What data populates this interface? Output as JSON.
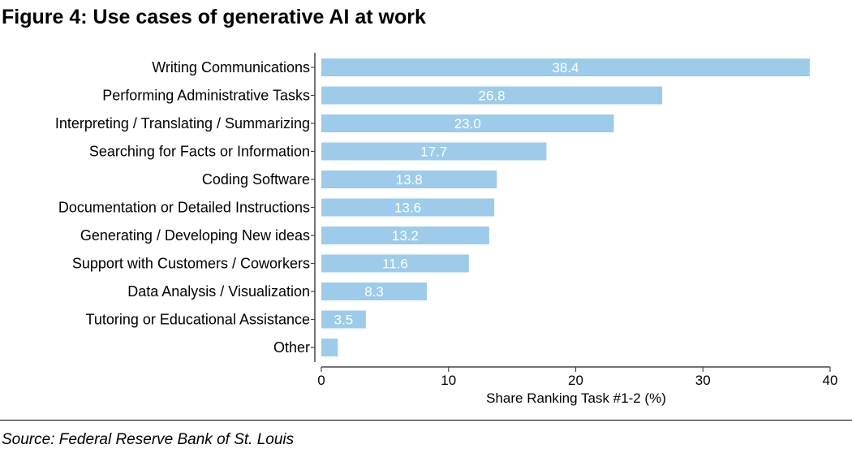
{
  "title": "Figure 4: Use cases of generative AI at work",
  "source": "Source: Federal Reserve Bank of St. Louis",
  "colors": {
    "bar": "#9ecbea",
    "bar_label": "#ffffff",
    "axis": "#444444",
    "text": "#000000"
  },
  "chart_data": {
    "type": "bar",
    "orientation": "horizontal",
    "title": "Figure 4: Use cases of generative AI at work",
    "xlabel": "Share Ranking Task #1-2 (%)",
    "ylabel": "",
    "xlim": [
      0,
      40
    ],
    "xticks": [
      0,
      10,
      20,
      30,
      40
    ],
    "grid": false,
    "categories": [
      "Writing Communications",
      "Performing Administrative Tasks",
      "Interpreting / Translating / Summarizing",
      "Searching for Facts or Information",
      "Coding Software",
      "Documentation or Detailed Instructions",
      "Generating / Developing New ideas",
      "Support with Customers / Coworkers",
      "Data Analysis / Visualization",
      "Tutoring or Educational Assistance",
      "Other"
    ],
    "values": [
      38.4,
      26.8,
      23.0,
      17.7,
      13.8,
      13.6,
      13.2,
      11.6,
      8.3,
      3.5,
      1.3
    ],
    "data_labels": [
      "38.4",
      "26.8",
      "23.0",
      "17.7",
      "13.8",
      "13.6",
      "13.2",
      "11.6",
      "8.3",
      "3.5",
      ""
    ]
  }
}
